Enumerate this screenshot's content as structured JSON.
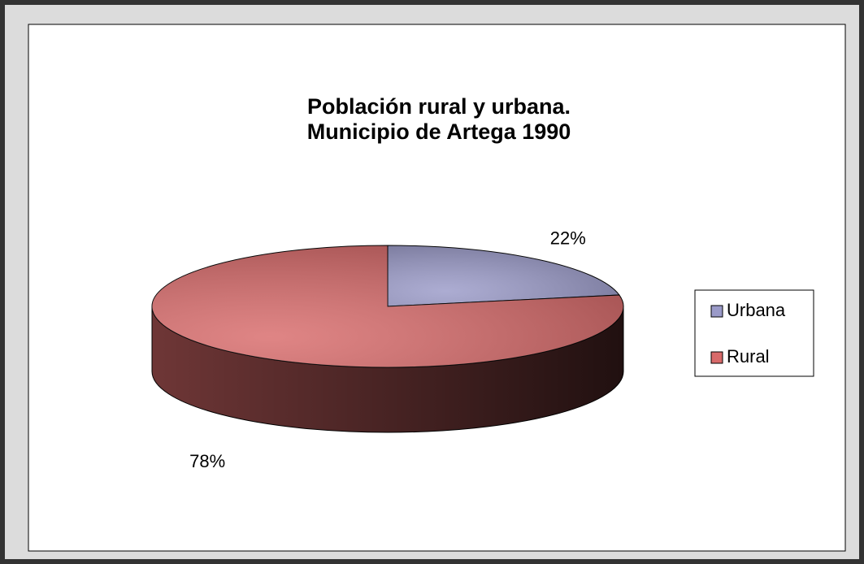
{
  "chart_data": {
    "type": "pie3d",
    "title": [
      "Población rural y urbana.",
      "Municipio de Artega 1990"
    ],
    "categories": [
      "Urbana",
      "Rural"
    ],
    "values": [
      22,
      78
    ],
    "value_labels": [
      "22%",
      "78%"
    ],
    "colors": [
      "#9a9ac8",
      "#d86a6a"
    ],
    "legend": "right"
  }
}
